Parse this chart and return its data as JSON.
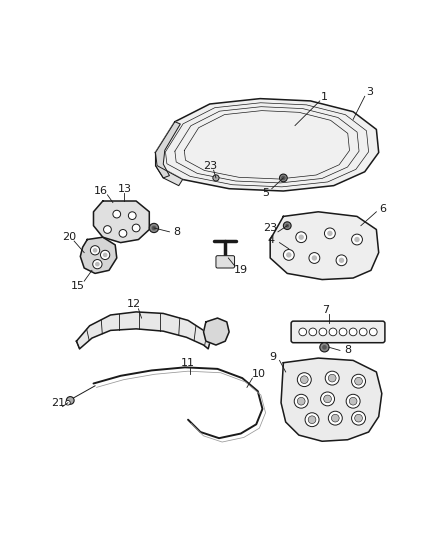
{
  "bg_color": "#ffffff",
  "line_color": "#1a1a1a",
  "label_color": "#1a1a1a",
  "fill_light": "#f2f2f2",
  "fill_medium": "#e0e0e0",
  "fill_dark": "#c8c8c8"
}
